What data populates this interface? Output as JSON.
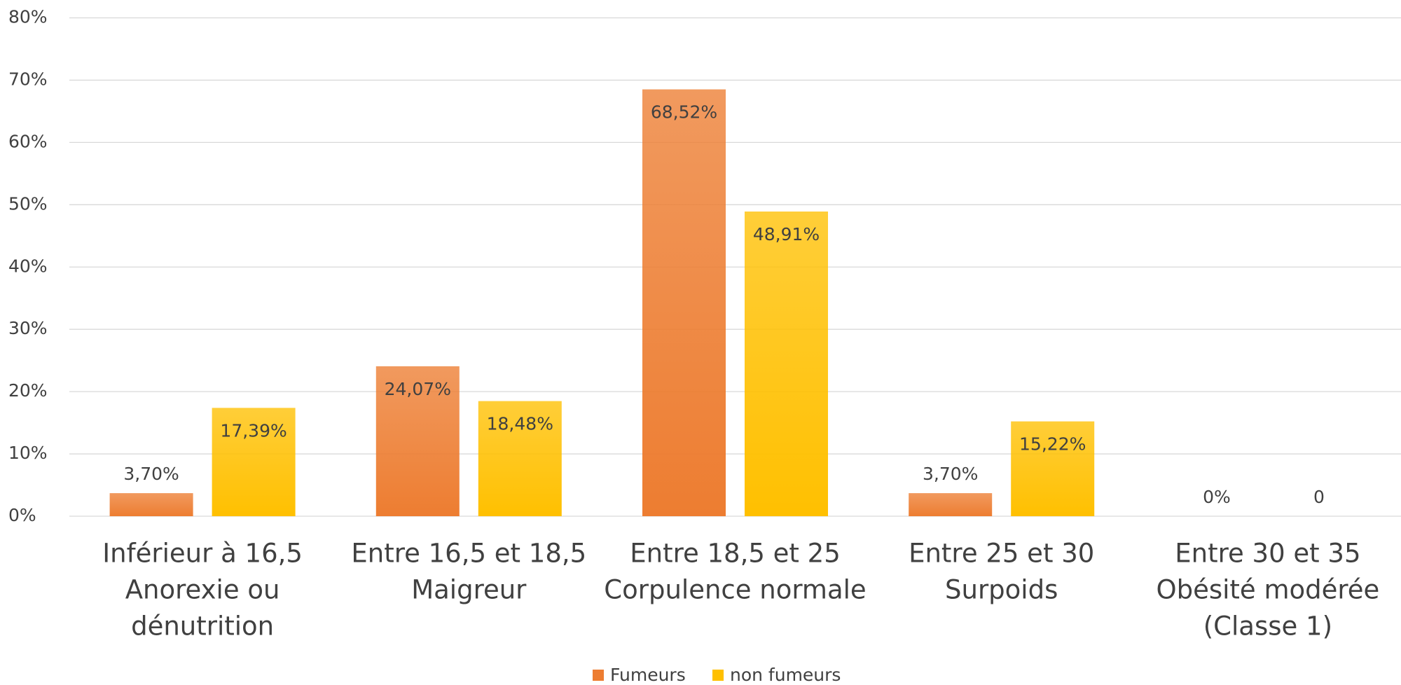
{
  "chart_data": {
    "type": "bar",
    "categories": [
      [
        "Inférieur à 16,5",
        "Anorexie ou",
        "dénutrition"
      ],
      [
        "Entre 16,5 et 18,5",
        "Maigreur"
      ],
      [
        "Entre 18,5 et 25",
        "Corpulence normale"
      ],
      [
        "Entre 25 et 30",
        "Surpoids"
      ],
      [
        "Entre 30 et 35",
        "Obésité modérée",
        "(Classe 1)"
      ]
    ],
    "series": [
      {
        "name": "Fumeurs",
        "color": "#ed7d31",
        "values": [
          3.7,
          24.07,
          68.52,
          3.7,
          0
        ],
        "value_labels": [
          "3,70%",
          "24,07%",
          "68,52%",
          "3,70%",
          "0%"
        ]
      },
      {
        "name": "non fumeurs",
        "color": "#ffc000",
        "values": [
          17.39,
          18.48,
          48.91,
          15.22,
          0
        ],
        "value_labels": [
          "17,39%",
          "18,48%",
          "48,91%",
          "15,22%",
          "0"
        ]
      }
    ],
    "ylim": [
      0,
      80
    ],
    "yticks": [
      {
        "value": 0,
        "label": "0%"
      },
      {
        "value": 10,
        "label": "10%"
      },
      {
        "value": 20,
        "label": "20%"
      },
      {
        "value": 30,
        "label": "30%"
      },
      {
        "value": 40,
        "label": "40%"
      },
      {
        "value": 50,
        "label": "50%"
      },
      {
        "value": 60,
        "label": "60%"
      },
      {
        "value": 70,
        "label": "70%"
      },
      {
        "value": 80,
        "label": "80%"
      }
    ],
    "grid": true,
    "legend": "bottom"
  }
}
